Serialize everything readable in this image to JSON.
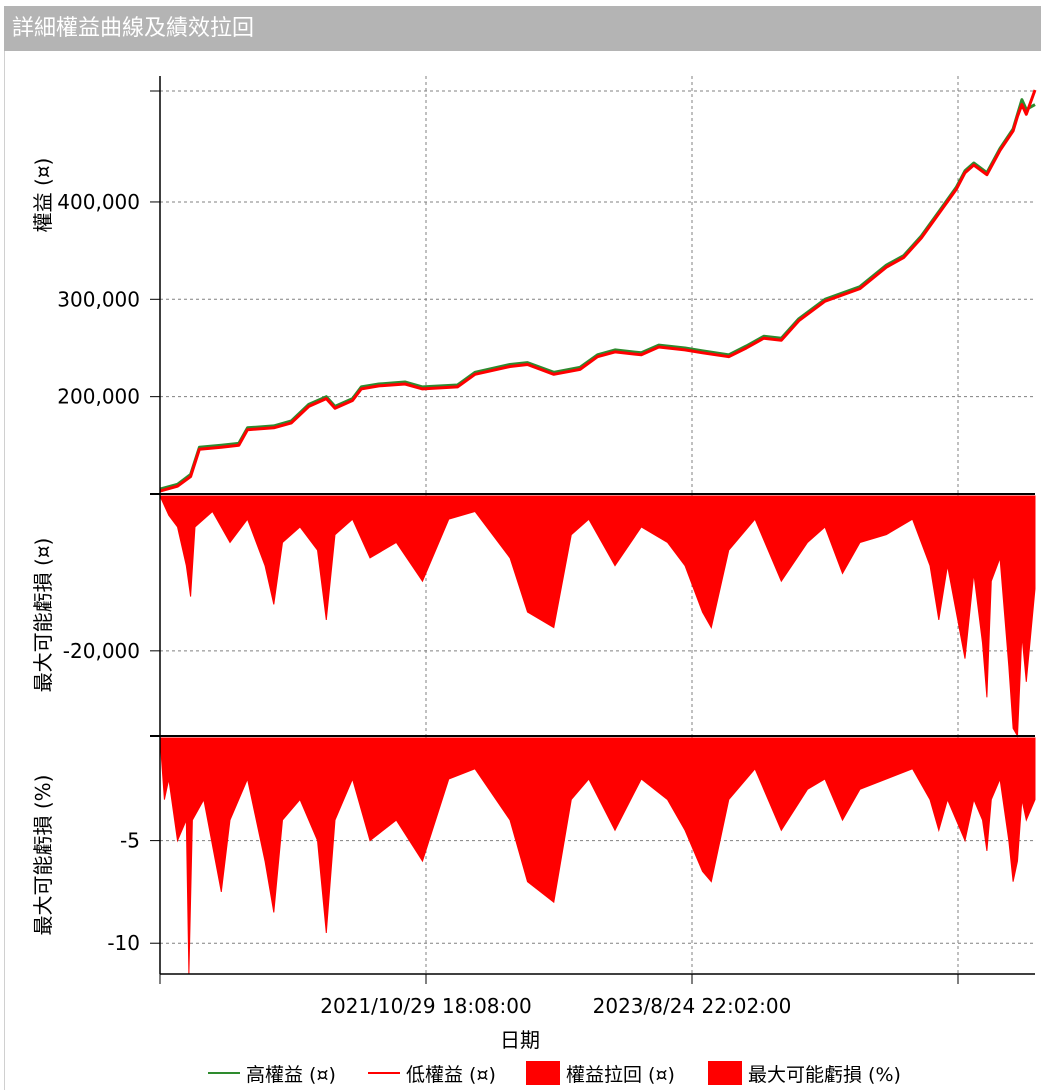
{
  "window": {
    "title": "詳細權益曲線及績效拉回"
  },
  "colors": {
    "high_equity": "#2e8b2e",
    "low_equity": "#ff0000",
    "fill": "#ff0000",
    "grid": "#808080"
  },
  "legend": [
    {
      "label": "高權益 (¤)",
      "kind": "line",
      "color": "#2e8b2e"
    },
    {
      "label": "低權益 (¤)",
      "kind": "line",
      "color": "#ff0000"
    },
    {
      "label": "權益拉回 (¤)",
      "kind": "box",
      "color": "#ff0000"
    },
    {
      "label": "最大可能虧損 (%)",
      "kind": "box",
      "color": "#ff0000"
    }
  ],
  "chart_data": [
    {
      "type": "line",
      "ylabel": "權益 (¤)",
      "yticks": [
        200000,
        300000,
        400000
      ],
      "ytick_labels": [
        "200,000",
        "300,000",
        "400,000"
      ],
      "ylim": [
        100000,
        515000
      ],
      "series": [
        {
          "name": "高權益 (¤)",
          "color": "#2e8b2e",
          "points": [
            [
              0,
              105000
            ],
            [
              0.02,
              110000
            ],
            [
              0.035,
              120000
            ],
            [
              0.045,
              148000
            ],
            [
              0.07,
              150000
            ],
            [
              0.09,
              152000
            ],
            [
              0.1,
              168000
            ],
            [
              0.13,
              170000
            ],
            [
              0.15,
              175000
            ],
            [
              0.17,
              192000
            ],
            [
              0.19,
              200000
            ],
            [
              0.2,
              190000
            ],
            [
              0.22,
              198000
            ],
            [
              0.23,
              210000
            ],
            [
              0.25,
              213000
            ],
            [
              0.28,
              215000
            ],
            [
              0.3,
              210000
            ],
            [
              0.34,
              212000
            ],
            [
              0.36,
              225000
            ],
            [
              0.4,
              233000
            ],
            [
              0.42,
              235000
            ],
            [
              0.45,
              225000
            ],
            [
              0.48,
              230000
            ],
            [
              0.5,
              243000
            ],
            [
              0.52,
              248000
            ],
            [
              0.55,
              245000
            ],
            [
              0.57,
              253000
            ],
            [
              0.6,
              250000
            ],
            [
              0.62,
              247000
            ],
            [
              0.65,
              243000
            ],
            [
              0.67,
              252000
            ],
            [
              0.69,
              262000
            ],
            [
              0.71,
              260000
            ],
            [
              0.73,
              280000
            ],
            [
              0.76,
              300000
            ],
            [
              0.8,
              313000
            ],
            [
              0.83,
              335000
            ],
            [
              0.85,
              345000
            ],
            [
              0.87,
              365000
            ],
            [
              0.89,
              390000
            ],
            [
              0.91,
              415000
            ],
            [
              0.92,
              432000
            ],
            [
              0.93,
              440000
            ],
            [
              0.945,
              430000
            ],
            [
              0.96,
              455000
            ],
            [
              0.975,
              475000
            ],
            [
              0.98,
              490000
            ],
            [
              0.985,
              505000
            ],
            [
              0.99,
              495000
            ],
            [
              1.0,
              500000
            ]
          ]
        },
        {
          "name": "低權益 (¤)",
          "color": "#ff0000",
          "points": [
            [
              0,
              103000
            ],
            [
              0.02,
              108000
            ],
            [
              0.035,
              118000
            ],
            [
              0.045,
              146000
            ],
            [
              0.07,
              148000
            ],
            [
              0.09,
              150000
            ],
            [
              0.1,
              166000
            ],
            [
              0.13,
              168000
            ],
            [
              0.15,
              173000
            ],
            [
              0.17,
              190000
            ],
            [
              0.19,
              198000
            ],
            [
              0.2,
              188000
            ],
            [
              0.22,
              196000
            ],
            [
              0.23,
              208000
            ],
            [
              0.25,
              211000
            ],
            [
              0.28,
              213000
            ],
            [
              0.3,
              208000
            ],
            [
              0.34,
              210000
            ],
            [
              0.36,
              223000
            ],
            [
              0.4,
              231000
            ],
            [
              0.42,
              233000
            ],
            [
              0.45,
              223000
            ],
            [
              0.48,
              228000
            ],
            [
              0.5,
              241000
            ],
            [
              0.52,
              246000
            ],
            [
              0.55,
              243000
            ],
            [
              0.57,
              251000
            ],
            [
              0.6,
              248000
            ],
            [
              0.62,
              245000
            ],
            [
              0.65,
              241000
            ],
            [
              0.67,
              250000
            ],
            [
              0.69,
              260000
            ],
            [
              0.71,
              258000
            ],
            [
              0.73,
              278000
            ],
            [
              0.76,
              298000
            ],
            [
              0.8,
              311000
            ],
            [
              0.83,
              333000
            ],
            [
              0.85,
              343000
            ],
            [
              0.87,
              363000
            ],
            [
              0.89,
              388000
            ],
            [
              0.91,
              413000
            ],
            [
              0.92,
              430000
            ],
            [
              0.93,
              438000
            ],
            [
              0.945,
              428000
            ],
            [
              0.96,
              453000
            ],
            [
              0.975,
              473000
            ],
            [
              0.98,
              488000
            ],
            [
              0.985,
              500000
            ],
            [
              0.99,
              490000
            ],
            [
              1.0,
              515000
            ]
          ]
        }
      ]
    },
    {
      "type": "area",
      "ylabel": "最大可能虧損 (¤)",
      "yticks": [
        -20000
      ],
      "ytick_labels": [
        "-20,000"
      ],
      "ylim": [
        -31000,
        0
      ],
      "series": [
        {
          "name": "權益拉回 (¤)",
          "color": "#ff0000",
          "points": [
            [
              0,
              0
            ],
            [
              0.01,
              -2500
            ],
            [
              0.02,
              -4000
            ],
            [
              0.03,
              -9000
            ],
            [
              0.035,
              -13000
            ],
            [
              0.04,
              -4000
            ],
            [
              0.06,
              -2000
            ],
            [
              0.08,
              -6000
            ],
            [
              0.1,
              -3000
            ],
            [
              0.12,
              -9000
            ],
            [
              0.13,
              -14000
            ],
            [
              0.14,
              -6000
            ],
            [
              0.16,
              -4000
            ],
            [
              0.18,
              -7000
            ],
            [
              0.19,
              -16000
            ],
            [
              0.2,
              -5000
            ],
            [
              0.22,
              -3000
            ],
            [
              0.24,
              -8000
            ],
            [
              0.27,
              -6000
            ],
            [
              0.3,
              -11000
            ],
            [
              0.33,
              -3000
            ],
            [
              0.36,
              -2000
            ],
            [
              0.4,
              -8000
            ],
            [
              0.42,
              -15000
            ],
            [
              0.45,
              -17000
            ],
            [
              0.47,
              -5000
            ],
            [
              0.49,
              -3000
            ],
            [
              0.52,
              -9000
            ],
            [
              0.55,
              -4000
            ],
            [
              0.58,
              -6000
            ],
            [
              0.6,
              -9000
            ],
            [
              0.62,
              -15000
            ],
            [
              0.63,
              -17000
            ],
            [
              0.65,
              -7000
            ],
            [
              0.68,
              -3000
            ],
            [
              0.71,
              -11000
            ],
            [
              0.74,
              -6000
            ],
            [
              0.76,
              -4000
            ],
            [
              0.78,
              -10000
            ],
            [
              0.8,
              -6000
            ],
            [
              0.83,
              -5000
            ],
            [
              0.86,
              -3000
            ],
            [
              0.88,
              -9000
            ],
            [
              0.89,
              -16000
            ],
            [
              0.9,
              -9000
            ],
            [
              0.92,
              -21000
            ],
            [
              0.93,
              -10000
            ],
            [
              0.94,
              -19000
            ],
            [
              0.945,
              -26000
            ],
            [
              0.95,
              -11000
            ],
            [
              0.96,
              -8000
            ],
            [
              0.97,
              -22000
            ],
            [
              0.975,
              -30000
            ],
            [
              0.98,
              -31000
            ],
            [
              0.985,
              -18000
            ],
            [
              0.99,
              -24000
            ],
            [
              1.0,
              -12000
            ]
          ]
        }
      ]
    },
    {
      "type": "area",
      "ylabel": "最大可能虧損 (%)",
      "xlabel": "日期",
      "yticks": [
        -5,
        -10
      ],
      "ytick_labels": [
        "-5",
        "-10"
      ],
      "ylim": [
        -11.5,
        0
      ],
      "xticks": [
        "2021/10/29 18:08:00",
        "2023/8/24 22:02:00"
      ],
      "series": [
        {
          "name": "最大可能虧損 (%)",
          "color": "#ff0000",
          "points": [
            [
              0,
              0
            ],
            [
              0.005,
              -3
            ],
            [
              0.01,
              -2
            ],
            [
              0.02,
              -5
            ],
            [
              0.03,
              -4
            ],
            [
              0.033,
              -11.5
            ],
            [
              0.037,
              -4
            ],
            [
              0.05,
              -3
            ],
            [
              0.07,
              -7.5
            ],
            [
              0.08,
              -4
            ],
            [
              0.1,
              -2
            ],
            [
              0.12,
              -6
            ],
            [
              0.13,
              -8.5
            ],
            [
              0.14,
              -4
            ],
            [
              0.16,
              -3
            ],
            [
              0.18,
              -5
            ],
            [
              0.19,
              -9.5
            ],
            [
              0.2,
              -4
            ],
            [
              0.22,
              -2
            ],
            [
              0.24,
              -5
            ],
            [
              0.27,
              -4
            ],
            [
              0.3,
              -6
            ],
            [
              0.33,
              -2
            ],
            [
              0.36,
              -1.5
            ],
            [
              0.4,
              -4
            ],
            [
              0.42,
              -7
            ],
            [
              0.45,
              -8
            ],
            [
              0.47,
              -3
            ],
            [
              0.49,
              -2
            ],
            [
              0.52,
              -4.5
            ],
            [
              0.55,
              -2
            ],
            [
              0.58,
              -3
            ],
            [
              0.6,
              -4.5
            ],
            [
              0.62,
              -6.5
            ],
            [
              0.63,
              -7
            ],
            [
              0.65,
              -3
            ],
            [
              0.68,
              -1.5
            ],
            [
              0.71,
              -4.5
            ],
            [
              0.74,
              -2.5
            ],
            [
              0.76,
              -2
            ],
            [
              0.78,
              -4
            ],
            [
              0.8,
              -2.5
            ],
            [
              0.83,
              -2
            ],
            [
              0.86,
              -1.5
            ],
            [
              0.88,
              -3
            ],
            [
              0.89,
              -4.5
            ],
            [
              0.9,
              -3
            ],
            [
              0.92,
              -5
            ],
            [
              0.93,
              -3
            ],
            [
              0.94,
              -4
            ],
            [
              0.945,
              -5.5
            ],
            [
              0.95,
              -3
            ],
            [
              0.96,
              -2
            ],
            [
              0.97,
              -5
            ],
            [
              0.975,
              -7
            ],
            [
              0.98,
              -6
            ],
            [
              0.985,
              -3
            ],
            [
              0.99,
              -4
            ],
            [
              1.0,
              -3
            ]
          ]
        }
      ]
    }
  ]
}
